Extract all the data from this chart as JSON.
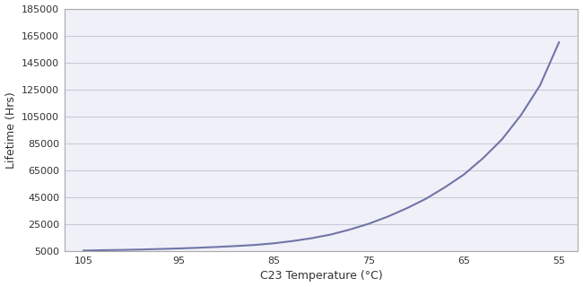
{
  "xlabel": "C23 Temperature (°C)",
  "ylabel": "Lifetime (Hrs)",
  "line_color": "#7075a8",
  "line_width": 1.5,
  "background_color": "#ffffff",
  "plot_bg_color": "#f0f0f8",
  "grid_color": "#c8ccd8",
  "xlim_left": 107,
  "xlim_right": 53,
  "ylim_bottom": 5000,
  "ylim_top": 185000,
  "xticks": [
    105,
    95,
    85,
    75,
    65,
    55
  ],
  "yticks": [
    5000,
    25000,
    45000,
    65000,
    85000,
    105000,
    125000,
    145000,
    165000,
    185000
  ],
  "x_data": [
    105,
    103,
    101,
    99,
    97,
    95,
    93,
    91,
    89,
    87,
    85,
    83,
    81,
    79,
    77,
    75,
    73,
    71,
    69,
    67,
    65,
    63,
    61,
    59,
    57,
    55
  ],
  "y_data": [
    5600,
    5900,
    6100,
    6400,
    6800,
    7200,
    7700,
    8300,
    9000,
    9800,
    11000,
    12700,
    14800,
    17500,
    21200,
    25500,
    30800,
    37000,
    44000,
    52500,
    62000,
    74000,
    88000,
    106000,
    128000,
    160000
  ]
}
